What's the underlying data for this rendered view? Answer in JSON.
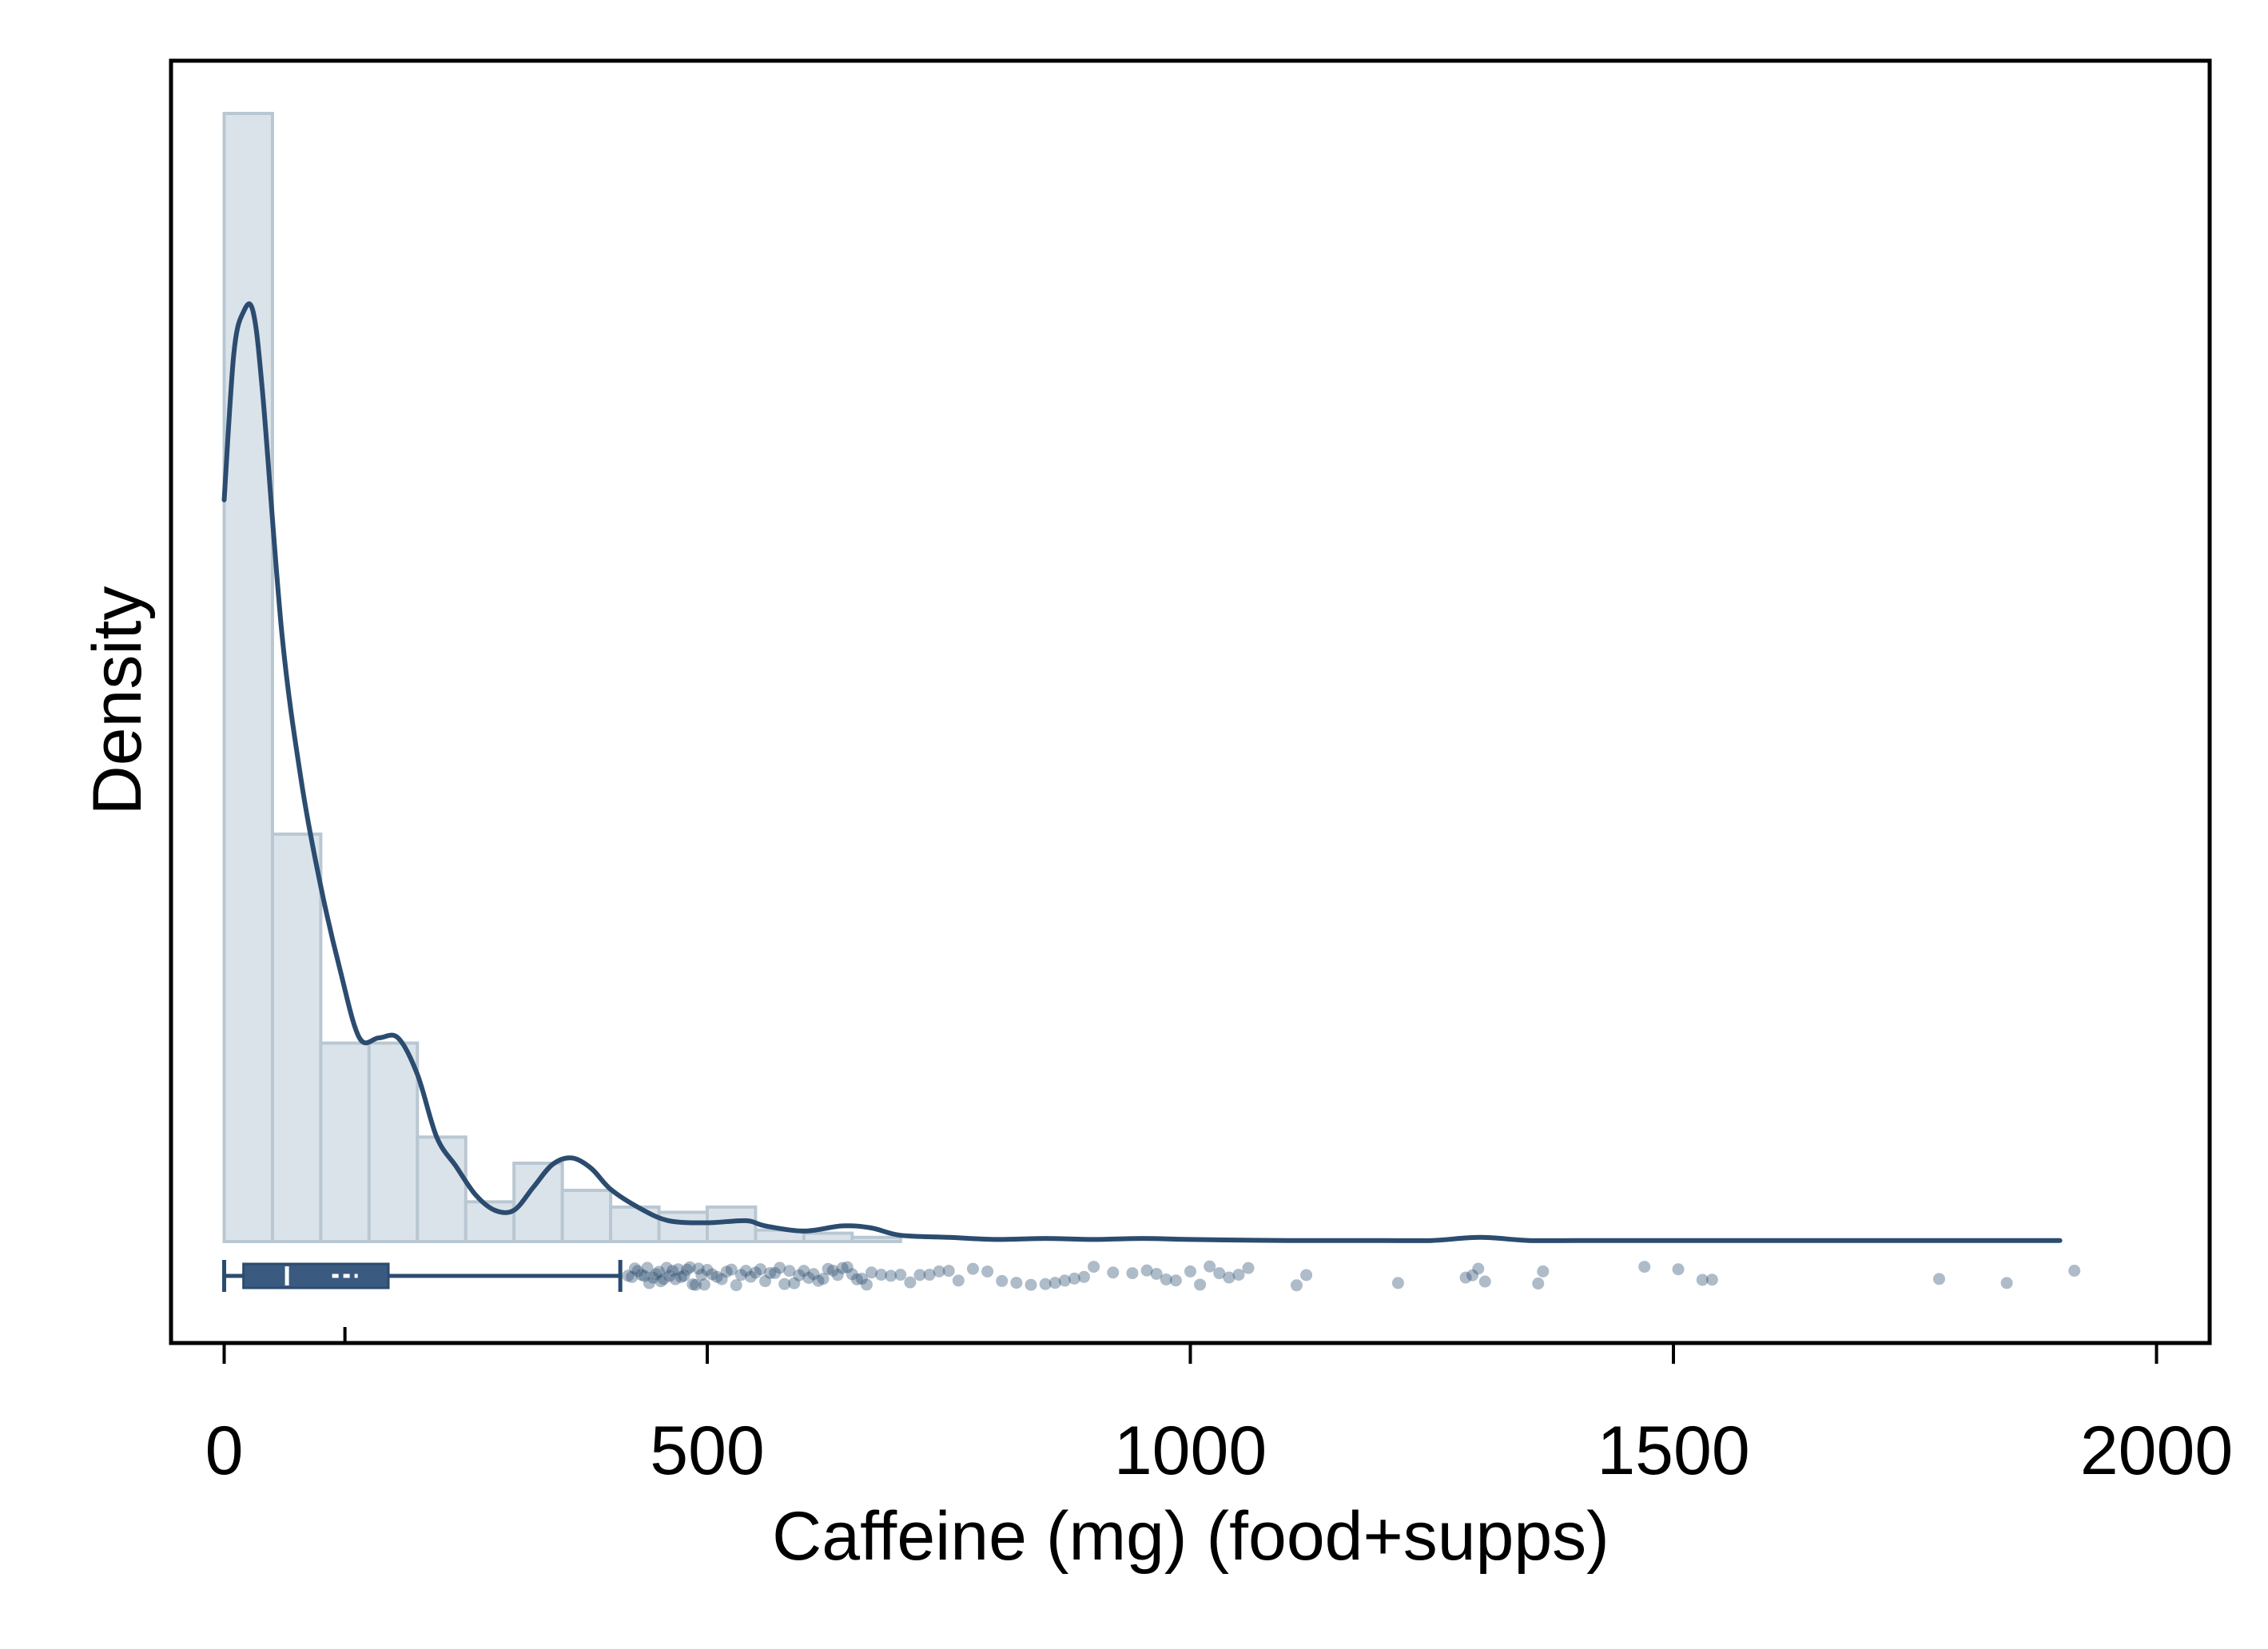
{
  "chart_data": {
    "type": "histogram",
    "xlabel": "Caffeine (mg) (food+supps)",
    "ylabel": "Density",
    "xlim": [
      -55,
      2055
    ],
    "xticks": [
      0,
      500,
      1000,
      1500,
      2000
    ],
    "y_tick_labels_shown": false,
    "grid": false,
    "colors": {
      "bar_fill": "#dbe3ea",
      "bar_edge": "#b9c7d2",
      "line": "#2b4c6f",
      "box": "#3a5a80",
      "points": "#2b4c6f"
    },
    "histogram": {
      "bin_width": 50,
      "bins_start": [
        0,
        50,
        100,
        150,
        200,
        250,
        300,
        350,
        400,
        450,
        500,
        550,
        600,
        650
      ],
      "density": [
        0.0108,
        0.0039,
        0.0019,
        0.0019,
        0.001,
        0.00038,
        0.00075,
        0.00049,
        0.00033,
        0.00028,
        0.00033,
        0.00011,
        8e-05,
        4e-05
      ]
    },
    "kde": {
      "x": [
        0,
        10,
        20,
        30,
        40,
        60,
        80,
        100,
        120,
        140,
        160,
        180,
        200,
        220,
        240,
        260,
        280,
        300,
        320,
        340,
        360,
        380,
        400,
        430,
        460,
        500,
        540,
        560,
        600,
        640,
        670,
        700,
        750,
        800,
        850,
        900,
        950,
        1000,
        1100,
        1200,
        1250,
        1300,
        1350,
        1400,
        1500,
        1600,
        1700,
        1800,
        1900
      ],
      "density": [
        0.0071,
        0.0085,
        0.0089,
        0.0089,
        0.0081,
        0.0058,
        0.0044,
        0.0034,
        0.0026,
        0.00195,
        0.00195,
        0.00195,
        0.0016,
        0.001,
        0.00072,
        0.00045,
        0.0003,
        0.0003,
        0.00052,
        0.00074,
        0.0008,
        0.0007,
        0.0005,
        0.00032,
        0.0002,
        0.00018,
        0.0002,
        0.00015,
        0.0001,
        0.00015,
        0.00013,
        6e-05,
        4e-05,
        2e-05,
        3e-05,
        2e-05,
        3e-05,
        2e-05,
        1e-05,
        1e-05,
        1e-05,
        4e-05,
        1e-05,
        1e-05,
        1e-05,
        1e-05,
        1e-05,
        1e-05,
        1e-05
      ]
    },
    "boxplot": {
      "whisker_low": 0,
      "q1": 20,
      "median": 65,
      "mean": 125,
      "q3": 170,
      "whisker_high": 410
    },
    "outliers": [
      418,
      422,
      425,
      428,
      432,
      435,
      438,
      440,
      444,
      447,
      450,
      452,
      455,
      458,
      461,
      464,
      467,
      470,
      473,
      476,
      479,
      482,
      485,
      488,
      491,
      494,
      497,
      500,
      505,
      510,
      515,
      520,
      525,
      530,
      535,
      540,
      545,
      550,
      555,
      560,
      565,
      570,
      575,
      580,
      585,
      590,
      595,
      600,
      605,
      610,
      615,
      620,
      625,
      630,
      635,
      640,
      645,
      650,
      655,
      660,
      665,
      670,
      680,
      690,
      700,
      710,
      720,
      730,
      740,
      750,
      760,
      775,
      790,
      805,
      820,
      835,
      850,
      860,
      870,
      880,
      890,
      900,
      920,
      940,
      955,
      965,
      975,
      985,
      1000,
      1010,
      1020,
      1030,
      1040,
      1050,
      1060,
      1110,
      1120,
      1215,
      1285,
      1292,
      1298,
      1305,
      1360,
      1365,
      1470,
      1505,
      1530,
      1540,
      1775,
      1845,
      1915
    ]
  }
}
